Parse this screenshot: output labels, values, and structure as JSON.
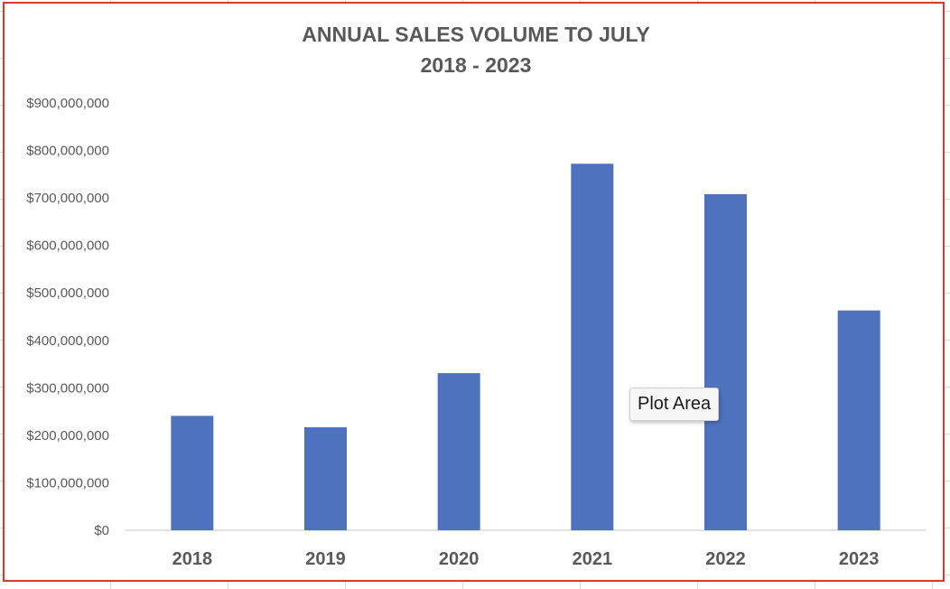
{
  "chart_data": {
    "type": "bar",
    "title": [
      "ANNUAL SALES VOLUME TO JULY",
      "2018 - 2023"
    ],
    "xlabel": "",
    "ylabel": "",
    "categories": [
      "2018",
      "2019",
      "2020",
      "2021",
      "2022",
      "2023"
    ],
    "values": [
      241000000,
      217000000,
      331000000,
      772000000,
      708000000,
      463000000
    ],
    "ylim": [
      0,
      900000000
    ],
    "y_ticks": [
      "$0",
      "$100,000,000",
      "$200,000,000",
      "$300,000,000",
      "$400,000,000",
      "$500,000,000",
      "$600,000,000",
      "$700,000,000",
      "$800,000,000",
      "$900,000,000"
    ],
    "grid": false,
    "legend": "none",
    "bar_color": "#4F72BE"
  },
  "tooltip": {
    "text": "Plot Area"
  }
}
